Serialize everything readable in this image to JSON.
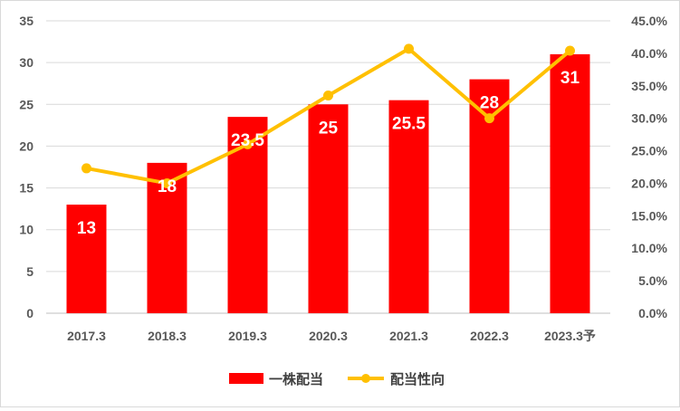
{
  "chart_data": {
    "type": "bar",
    "categories": [
      "2017.3",
      "2018.3",
      "2019.3",
      "2020.3",
      "2021.3",
      "2022.3",
      "2023.3予"
    ],
    "series": [
      {
        "name": "一株配当",
        "type": "bar",
        "axis": "left",
        "color": "#ff0000",
        "values": [
          13,
          18,
          23.5,
          25,
          25.5,
          28,
          31
        ],
        "data_labels": [
          "13",
          "18",
          "23.5",
          "25",
          "25.5",
          "28",
          "31"
        ]
      },
      {
        "name": "配当性向",
        "type": "line",
        "axis": "right",
        "color": "#ffc000",
        "values": [
          22.3,
          20.0,
          26.0,
          33.5,
          40.7,
          30.0,
          40.4
        ]
      }
    ],
    "y_left": {
      "min": 0,
      "max": 35,
      "step": 5,
      "ticks": [
        "0",
        "5",
        "10",
        "15",
        "20",
        "25",
        "30",
        "35"
      ]
    },
    "y_right": {
      "min": 0,
      "max": 45,
      "step": 5,
      "ticks": [
        "0.0%",
        "5.0%",
        "10.0%",
        "15.0%",
        "20.0%",
        "25.0%",
        "30.0%",
        "35.0%",
        "40.0%",
        "45.0%"
      ]
    },
    "grid": true,
    "legend_position": "bottom"
  }
}
